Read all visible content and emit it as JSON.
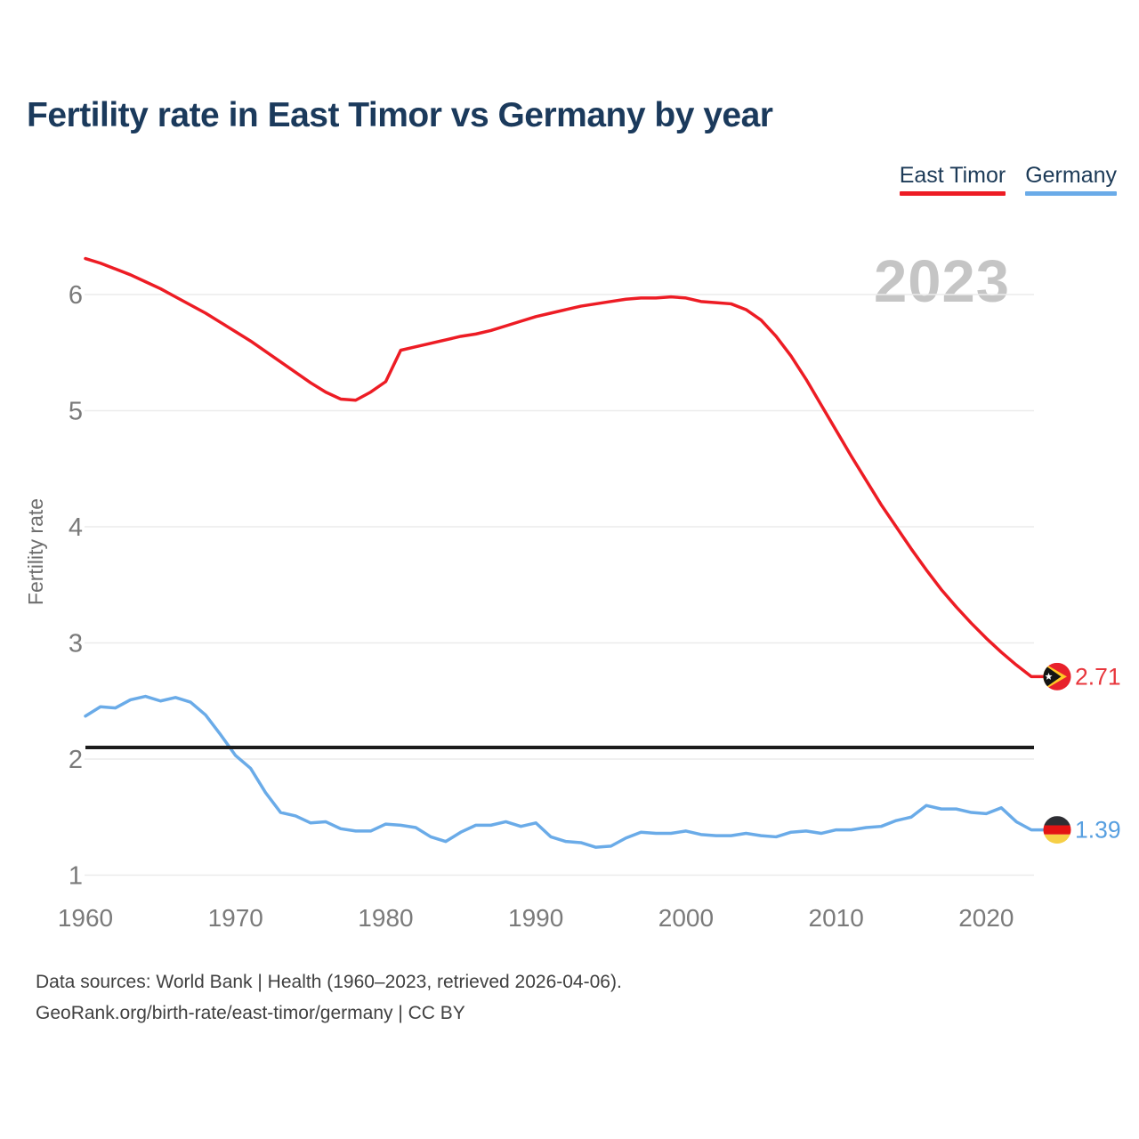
{
  "page": {
    "title": "Fertility rate in East Timor vs Germany by year",
    "watermark_year": "2023",
    "footer_line1": "Data sources: World Bank | Health (1960–2023, retrieved 2026-04-06).",
    "footer_line2": "GeoRank.org/birth-rate/east-timor/germany | CC BY"
  },
  "legend": [
    {
      "label": "East Timor",
      "color": "#ed1c24"
    },
    {
      "label": "Germany",
      "color": "#6aabe8"
    }
  ],
  "chart_data": {
    "type": "line",
    "title": "Fertility rate in East Timor vs Germany by year",
    "xlabel": "",
    "ylabel": "Fertility rate",
    "xlim": [
      1960,
      2023
    ],
    "ylim": [
      1,
      6.5
    ],
    "grid": "horizontal-only",
    "legend_position": "top-right",
    "xticks": [
      1960,
      1970,
      1980,
      1990,
      2000,
      2010,
      2020
    ],
    "yticks": [
      1,
      2,
      3,
      4,
      5,
      6
    ],
    "x": [
      1960,
      1961,
      1962,
      1963,
      1964,
      1965,
      1966,
      1967,
      1968,
      1969,
      1970,
      1971,
      1972,
      1973,
      1974,
      1975,
      1976,
      1977,
      1978,
      1979,
      1980,
      1981,
      1982,
      1983,
      1984,
      1985,
      1986,
      1987,
      1988,
      1989,
      1990,
      1991,
      1992,
      1993,
      1994,
      1995,
      1996,
      1997,
      1998,
      1999,
      2000,
      2001,
      2002,
      2003,
      2004,
      2005,
      2006,
      2007,
      2008,
      2009,
      2010,
      2011,
      2012,
      2013,
      2014,
      2015,
      2016,
      2017,
      2018,
      2019,
      2020,
      2021,
      2022,
      2023
    ],
    "series": [
      {
        "name": "East Timor",
        "color": "#ed1c24",
        "values": [
          6.31,
          6.27,
          6.22,
          6.17,
          6.11,
          6.05,
          5.98,
          5.91,
          5.84,
          5.76,
          5.68,
          5.6,
          5.51,
          5.42,
          5.33,
          5.24,
          5.16,
          5.1,
          5.09,
          5.16,
          5.25,
          5.52,
          5.55,
          5.58,
          5.61,
          5.64,
          5.66,
          5.69,
          5.73,
          5.77,
          5.81,
          5.84,
          5.87,
          5.9,
          5.92,
          5.94,
          5.96,
          5.97,
          5.97,
          5.98,
          5.97,
          5.94,
          5.93,
          5.92,
          5.87,
          5.78,
          5.64,
          5.47,
          5.27,
          5.05,
          4.83,
          4.61,
          4.4,
          4.19,
          4.0,
          3.81,
          3.63,
          3.46,
          3.31,
          3.17,
          3.04,
          2.92,
          2.81,
          2.71
        ]
      },
      {
        "name": "Germany",
        "color": "#6aabe8",
        "values": [
          2.37,
          2.45,
          2.44,
          2.51,
          2.54,
          2.5,
          2.53,
          2.49,
          2.38,
          2.21,
          2.03,
          1.92,
          1.71,
          1.54,
          1.51,
          1.45,
          1.46,
          1.4,
          1.38,
          1.38,
          1.44,
          1.43,
          1.41,
          1.33,
          1.29,
          1.37,
          1.43,
          1.43,
          1.46,
          1.42,
          1.45,
          1.33,
          1.29,
          1.28,
          1.24,
          1.25,
          1.32,
          1.37,
          1.36,
          1.36,
          1.38,
          1.35,
          1.34,
          1.34,
          1.36,
          1.34,
          1.33,
          1.37,
          1.38,
          1.36,
          1.39,
          1.39,
          1.41,
          1.42,
          1.47,
          1.5,
          1.6,
          1.57,
          1.57,
          1.54,
          1.53,
          1.58,
          1.46,
          1.39
        ]
      }
    ],
    "reference_line": {
      "value": 2.1,
      "color": "#1c1c1c"
    },
    "end_labels": {
      "east_timor": "2.71",
      "germany": "1.39"
    },
    "colors": {
      "grid": "#ececec",
      "tick_text": "#7a7a7a",
      "axis_title": "#6e6e6e"
    }
  }
}
